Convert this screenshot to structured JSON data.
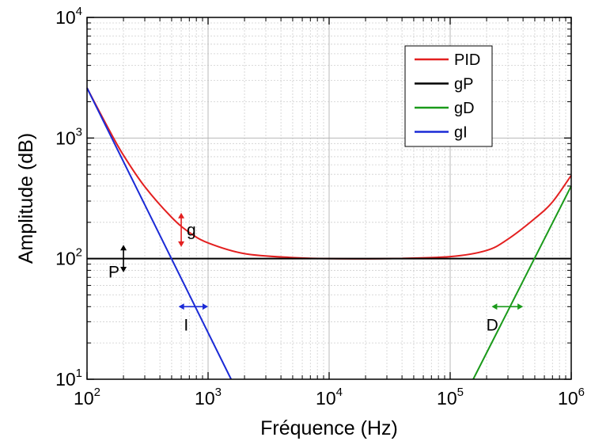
{
  "chart_data": {
    "type": "line",
    "title": "",
    "xlabel": "Fréquence (Hz)",
    "ylabel": "Amplitude (dB)",
    "x_scale": "log",
    "y_scale": "log",
    "xlim": [
      100,
      1000000
    ],
    "ylim": [
      10,
      10000
    ],
    "grid": true,
    "legend_position": "top-right",
    "x_ticks": [
      {
        "base": "10",
        "exp": "2"
      },
      {
        "base": "10",
        "exp": "3"
      },
      {
        "base": "10",
        "exp": "4"
      },
      {
        "base": "10",
        "exp": "5"
      },
      {
        "base": "10",
        "exp": "6"
      }
    ],
    "y_ticks": [
      {
        "base": "10",
        "exp": "1"
      },
      {
        "base": "10",
        "exp": "2"
      },
      {
        "base": "10",
        "exp": "3"
      },
      {
        "base": "10",
        "exp": "4"
      }
    ],
    "series": [
      {
        "name": "PID",
        "color": "#e32020",
        "x": [
          100,
          150,
          200,
          300,
          500,
          700,
          1000,
          2000,
          5000,
          10000,
          30000,
          100000,
          200000,
          300000,
          500000,
          700000,
          1000000
        ],
        "y": [
          2600,
          1200,
          720,
          395,
          220,
          165,
          135,
          110,
          102,
          100,
          100,
          104,
          117,
          145,
          215,
          295,
          490
        ]
      },
      {
        "name": "gP",
        "color": "#000000",
        "x": [
          100,
          1000000
        ],
        "y": [
          100,
          100
        ]
      },
      {
        "name": "gD",
        "color": "#1a9a1a",
        "x": [
          155000,
          1000000
        ],
        "y": [
          10,
          400
        ]
      },
      {
        "name": "gI",
        "color": "#1a2ad6",
        "x": [
          100,
          1550
        ],
        "y": [
          2600,
          10
        ]
      }
    ],
    "annotations": [
      {
        "label": "g",
        "color": "#e32020",
        "orientation": "vertical",
        "x": 600,
        "y_from": 125,
        "y_to": 240
      },
      {
        "label": "P",
        "color": "#000000",
        "orientation": "vertical",
        "x": 200,
        "y_from": 77,
        "y_to": 130
      },
      {
        "label": "I",
        "color": "#1a2ad6",
        "orientation": "horizontal",
        "y": 40,
        "x_from": 570,
        "x_to": 1000
      },
      {
        "label": "D",
        "color": "#1a9a1a",
        "orientation": "horizontal",
        "y": 40,
        "x_from": 220000,
        "x_to": 400000
      }
    ]
  }
}
